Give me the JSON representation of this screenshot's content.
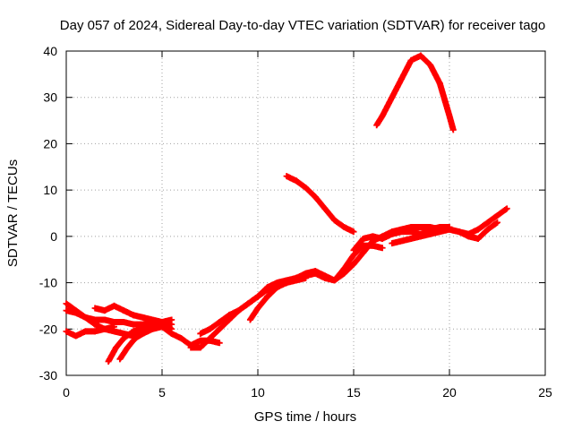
{
  "chart_data": {
    "type": "scatter",
    "title": "Day 057 of 2024, Sidereal Day-to-day VTEC variation (SDTVAR) for receiver tago",
    "xlabel": "GPS time / hours",
    "ylabel": "SDTVAR / TECUs",
    "xlim": [
      0,
      25
    ],
    "ylim": [
      -30,
      40
    ],
    "x_ticks": [
      0,
      5,
      10,
      15,
      20,
      25
    ],
    "y_ticks": [
      -30,
      -20,
      -10,
      0,
      10,
      20,
      30,
      40
    ],
    "grid": true,
    "marker_color": "#ff0000",
    "series": [
      {
        "x": [
          0.0,
          0.5,
          1.0,
          1.5,
          2.0,
          2.5,
          3.0,
          3.5,
          4.0,
          4.5,
          5.0,
          5.5,
          6.0,
          6.5,
          7.0,
          7.5,
          8.0
        ],
        "y": [
          -14.5,
          -16,
          -17.5,
          -19,
          -20,
          -20.5,
          -21,
          -21.5,
          -21,
          -20,
          -19.5,
          -21,
          -22,
          -23.5,
          -22.5,
          -22.5,
          -23
        ]
      },
      {
        "x": [
          0.0,
          0.5,
          1.0,
          1.5,
          2.0,
          2.5,
          3.0,
          3.5,
          4.0,
          4.5,
          5.0,
          5.5
        ],
        "y": [
          -16,
          -16.5,
          -17.5,
          -18,
          -18,
          -18.5,
          -18.5,
          -19,
          -19,
          -18.5,
          -18.5,
          -20
        ]
      },
      {
        "x": [
          0.0,
          0.5,
          1.0,
          1.5,
          2.0,
          2.5
        ],
        "y": [
          -20.5,
          -21.5,
          -20.5,
          -20.5,
          -20,
          -19.5
        ]
      },
      {
        "x": [
          1.5,
          2.0,
          2.5,
          3.0,
          3.5,
          4.0,
          4.5,
          5.0,
          5.5
        ],
        "y": [
          -15.5,
          -16,
          -15,
          -16,
          -17,
          -17.5,
          -18,
          -18.5,
          -19
        ]
      },
      {
        "x": [
          2.2,
          2.6,
          3.0,
          3.5,
          4.0,
          4.5,
          5.0
        ],
        "y": [
          -27,
          -24,
          -22,
          -20.5,
          -20,
          -19.5,
          -19.5
        ]
      },
      {
        "x": [
          2.8,
          3.2,
          3.6,
          4.0,
          4.5,
          5.0,
          5.5
        ],
        "y": [
          -26.5,
          -24,
          -22,
          -21,
          -19.5,
          -18.5,
          -18
        ]
      },
      {
        "x": [
          6.5,
          7.0,
          7.5,
          8.0,
          8.5,
          9.0,
          9.5,
          10.0,
          10.5,
          11.0,
          11.5,
          12.0,
          12.5,
          13.0,
          13.5,
          14.0,
          14.5,
          15.0,
          15.5,
          16.0,
          16.5,
          17.0,
          17.5,
          18.0,
          18.5,
          19.0,
          19.5,
          20.0,
          20.5,
          21.0,
          21.5,
          22.0,
          22.5,
          23.0
        ],
        "y": [
          -24,
          -24,
          -22,
          -20,
          -18,
          -16,
          -14.5,
          -13,
          -11,
          -10,
          -9.5,
          -9,
          -8.5,
          -8,
          -9,
          -9.5,
          -8,
          -6,
          -3.5,
          -1,
          0,
          1,
          1.5,
          2,
          2,
          2,
          1.5,
          1.5,
          1,
          0.5,
          1.5,
          3,
          4.5,
          6
        ]
      },
      {
        "x": [
          7.0,
          7.5,
          8.0,
          8.5,
          9.0,
          9.5,
          10.0,
          10.5,
          11.0,
          11.5,
          12.0,
          12.5
        ],
        "y": [
          -21,
          -20,
          -18.5,
          -17,
          -16,
          -14.5,
          -13,
          -11.5,
          -10.5,
          -10,
          -9.5,
          -9
        ]
      },
      {
        "x": [
          9.6,
          10.0,
          10.5,
          11.0,
          11.5,
          12.0,
          12.5,
          13.0,
          13.5,
          14.0,
          14.5,
          15.0,
          15.5,
          16.0,
          16.5
        ],
        "y": [
          -18,
          -15.5,
          -13,
          -11,
          -10,
          -9,
          -8,
          -7.5,
          -8.5,
          -9.5,
          -7,
          -4,
          -2,
          -2,
          -2.5
        ]
      },
      {
        "x": [
          15.0,
          15.5,
          16.0,
          16.5,
          17.0,
          17.5,
          18.0,
          18.5,
          19.0,
          19.5,
          20.0
        ],
        "y": [
          -3,
          -0.5,
          0,
          -0.5,
          0.5,
          1,
          1,
          0.5,
          1.5,
          2,
          2
        ]
      },
      {
        "x": [
          17.0,
          17.5,
          18.0,
          18.5,
          19.0,
          19.5,
          20.0,
          20.5,
          21.0,
          21.5,
          22.0,
          22.5
        ],
        "y": [
          -1.5,
          -1,
          -0.5,
          0,
          0.5,
          1,
          1.5,
          1,
          0,
          -0.5,
          1.5,
          3
        ]
      },
      {
        "x": [
          11.5,
          12.0,
          12.5,
          13.0,
          13.5,
          14.0,
          14.5,
          15.0
        ],
        "y": [
          13,
          12,
          10.5,
          8.5,
          6,
          3.5,
          2,
          1
        ]
      },
      {
        "x": [
          16.2,
          16.5,
          17.0,
          17.5,
          18.0,
          18.5,
          19.0,
          19.5,
          20.0,
          20.2
        ],
        "y": [
          24,
          26,
          30,
          34,
          38,
          39,
          37,
          33,
          26,
          23
        ]
      }
    ]
  }
}
